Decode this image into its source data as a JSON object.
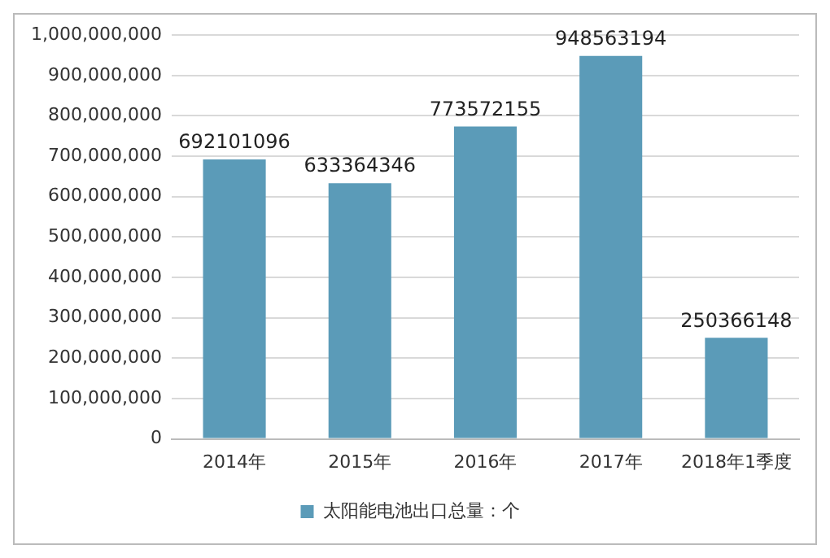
{
  "chart_data": {
    "type": "bar",
    "categories": [
      "2014年",
      "2015年",
      "2016年",
      "2017年",
      "2018年1季度"
    ],
    "series": [
      {
        "name": "太阳能电池出口总量：个",
        "color": "#5b9bb8",
        "values": [
          692101096,
          633364346,
          773572155,
          948563194,
          250366148
        ]
      }
    ],
    "ylim": [
      0,
      1000000000
    ],
    "yticks": [
      {
        "value": 0,
        "label": "0"
      },
      {
        "value": 100000000,
        "label": "100,000,000"
      },
      {
        "value": 200000000,
        "label": "200,000,000"
      },
      {
        "value": 300000000,
        "label": "300,000,000"
      },
      {
        "value": 400000000,
        "label": "400,000,000"
      },
      {
        "value": 500000000,
        "label": "500,000,000"
      },
      {
        "value": 600000000,
        "label": "600,000,000"
      },
      {
        "value": 700000000,
        "label": "700,000,000"
      },
      {
        "value": 800000000,
        "label": "800,000,000"
      },
      {
        "value": 900000000,
        "label": "900,000,000"
      },
      {
        "value": 1000000000,
        "label": "1,000,000,000"
      }
    ],
    "grid": "y",
    "legend": "bottom",
    "data_labels": true
  }
}
